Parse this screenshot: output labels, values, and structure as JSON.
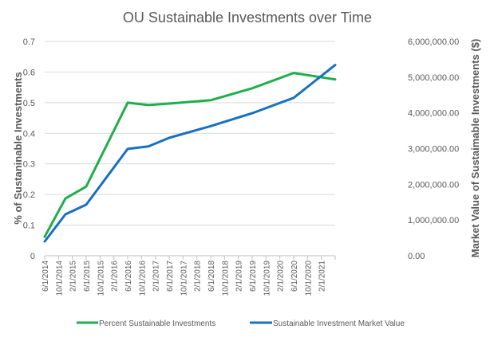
{
  "chart_data": {
    "type": "line",
    "title": "OU Sustainable Investments over Time",
    "ylabel": "% of Sustaninable Investments",
    "y2label": "Market Value of Sustaimable Investments ($)",
    "xlabel": "",
    "x_tick_labels": [
      "6/1/2014",
      "10/1/2014",
      "2/1/2015",
      "6/1/2015",
      "10/1/2015",
      "2/1/2016",
      "6/1/2016",
      "10/1/2016",
      "2/1/2017",
      "6/1/2017",
      "10/1/2017",
      "2/1/2018",
      "6/1/2018",
      "10/1/2018",
      "2/1/2019",
      "6/1/2019",
      "10/1/2019",
      "2/1/2020",
      "6/1/2020",
      "10/1/2020",
      "2/1/2021"
    ],
    "xlim": [
      "6/1/2014",
      "6/1/2021"
    ],
    "ylim": [
      0,
      0.7
    ],
    "y_ticks": [
      "0",
      "0.1",
      "0.2",
      "0.3",
      "0.4",
      "0.5",
      "0.6",
      "0.7"
    ],
    "y2lim": [
      0,
      6000000
    ],
    "y2_ticks": [
      "0.00",
      "1,000,000.00",
      "2,000,000.00",
      "3,000,000.00",
      "4,000,000.00",
      "5,000,000.00",
      "6,000,000.00"
    ],
    "grid": true,
    "legend_position": "bottom",
    "series": [
      {
        "name": "Percent Sustainable Investments",
        "axis": "left",
        "color": "#1fae4b",
        "x": [
          "6/1/2014",
          "12/1/2014",
          "6/1/2015",
          "6/1/2016",
          "12/1/2016",
          "6/1/2017",
          "6/1/2018",
          "6/1/2019",
          "6/1/2020",
          "6/1/2021"
        ],
        "values": [
          0.062,
          0.187,
          0.226,
          0.5,
          0.492,
          0.497,
          0.508,
          0.547,
          0.597,
          0.576
        ]
      },
      {
        "name": "Sustainable Investment Market Value",
        "axis": "right",
        "color": "#1870c0",
        "x": [
          "6/1/2014",
          "12/1/2014",
          "6/1/2015",
          "6/1/2016",
          "12/1/2016",
          "6/1/2017",
          "6/1/2018",
          "6/1/2019",
          "6/1/2020",
          "6/1/2021"
        ],
        "values": [
          400000,
          1160000,
          1430000,
          2990000,
          3060000,
          3300000,
          3630000,
          3990000,
          4420000,
          5340000
        ]
      }
    ]
  }
}
